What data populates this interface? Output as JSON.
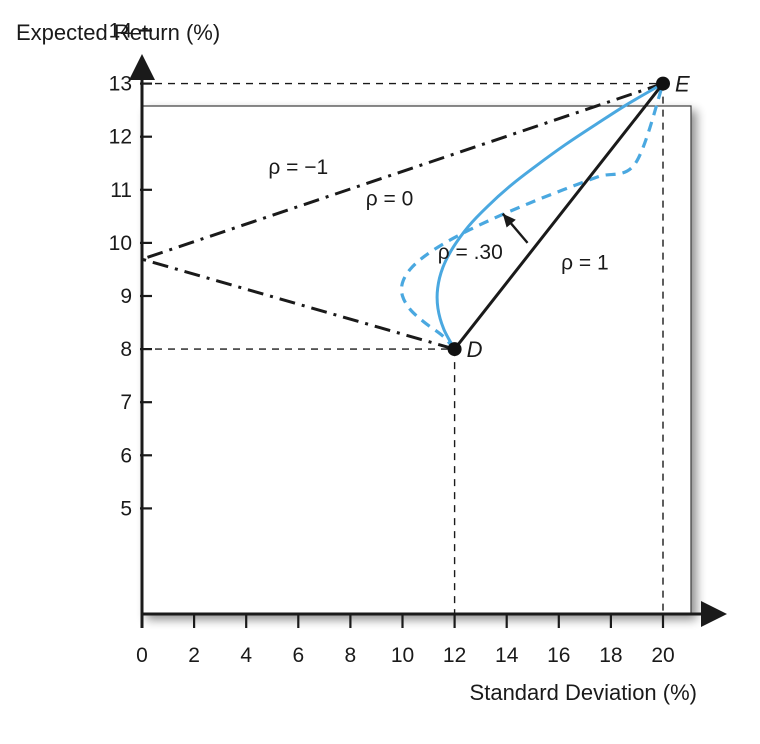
{
  "chart_data": {
    "type": "line",
    "xlabel": "Standard Deviation (%)",
    "ylabel": "Expected Return (%)",
    "xlim": [
      0,
      20
    ],
    "ylim": [
      5,
      14
    ],
    "x_ticks": [
      "0",
      "2",
      "4",
      "6",
      "8",
      "10",
      "12",
      "14",
      "16",
      "18",
      "20"
    ],
    "y_ticks": [
      "5",
      "6",
      "7",
      "8",
      "9",
      "10",
      "11",
      "12",
      "13",
      "14"
    ],
    "grid": false,
    "points": [
      {
        "name": "D",
        "label": "D",
        "x": 12,
        "y": 8
      },
      {
        "name": "E",
        "label": "E",
        "x": 20,
        "y": 13
      }
    ],
    "series": [
      {
        "name": "ρ = −1",
        "label": "ρ = −1",
        "style": "dash-dot",
        "color": "#1a1a1a",
        "x": [
          20,
          0,
          12
        ],
        "y": [
          13,
          9.6923,
          8
        ]
      },
      {
        "name": "ρ = 0",
        "label": "ρ = 0",
        "style": "dashed",
        "color": "#4aa8e0",
        "x": [
          12,
          11.54,
          10.85,
          10.29,
          10.0,
          10.0,
          10.29,
          10.85,
          11.63,
          12.59,
          13.68,
          14.88,
          16.17,
          17.53,
          18.94,
          20
        ],
        "y": [
          8,
          8.25,
          8.5,
          8.75,
          9.0,
          9.25,
          9.5,
          9.75,
          10.0,
          10.25,
          10.5,
          10.75,
          11.0,
          11.25,
          11.5,
          13
        ]
      },
      {
        "name": "ρ = .30",
        "label": "ρ = .30",
        "style": "solid",
        "color": "#4aa8e0",
        "x": [
          12,
          11.58,
          11.36,
          11.35,
          11.55,
          11.95,
          12.53,
          13.27,
          14.15,
          15.15,
          16.25,
          17.42,
          18.66,
          20
        ],
        "y": [
          8,
          8.38,
          8.77,
          9.15,
          9.54,
          9.92,
          10.31,
          10.69,
          11.08,
          11.46,
          11.85,
          12.23,
          12.62,
          13
        ]
      },
      {
        "name": "ρ = 1",
        "label": "ρ = 1",
        "style": "solid",
        "color": "#1a1a1a",
        "x": [
          12,
          20
        ],
        "y": [
          8,
          13
        ]
      }
    ]
  }
}
